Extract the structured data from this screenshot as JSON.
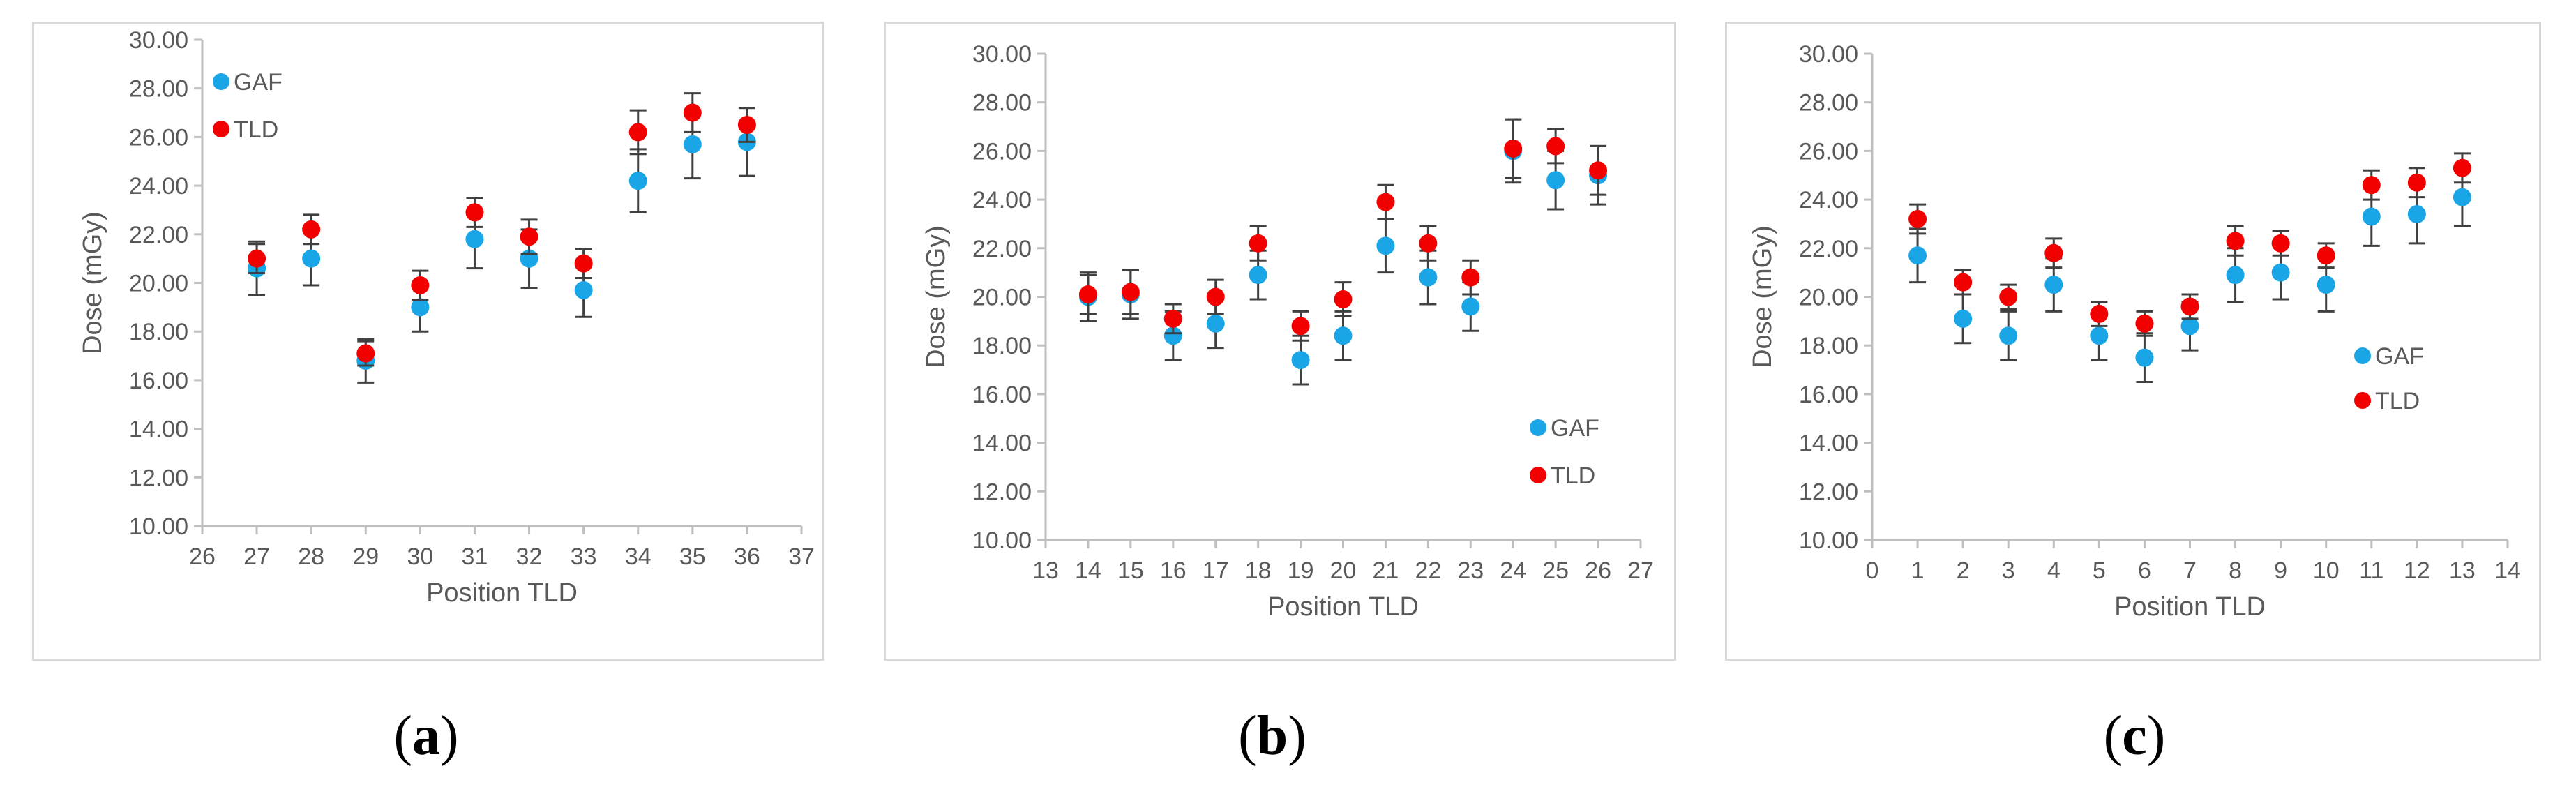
{
  "colors": {
    "gaf": "#1aa6e6",
    "tld": "#f20000",
    "axis": "#bfbfbf",
    "text": "#595959",
    "errorbar": "#404040"
  },
  "chart_data": [
    {
      "id": "a",
      "type": "scatter",
      "caption_label": "a",
      "title": "",
      "xlabel": "Position TLD",
      "ylabel": "Dose (mGy)",
      "xlim": [
        26,
        37
      ],
      "ylim": [
        10,
        30
      ],
      "x_ticks": [
        "26",
        "27",
        "28",
        "29",
        "30",
        "31",
        "32",
        "33",
        "34",
        "35",
        "36",
        "37"
      ],
      "y_ticks": [
        "10.00",
        "12.00",
        "14.00",
        "16.00",
        "18.00",
        "20.00",
        "22.00",
        "24.00",
        "26.00",
        "28.00",
        "30.00"
      ],
      "legend_position": "top-left",
      "series": [
        {
          "name": "GAF",
          "x": [
            27,
            28,
            29,
            30,
            31,
            32,
            33,
            34,
            35,
            36
          ],
          "values": [
            20.6,
            21.0,
            16.8,
            19.0,
            21.8,
            21.0,
            19.7,
            24.2,
            25.7,
            25.8
          ],
          "errors": [
            1.1,
            1.1,
            0.9,
            1.0,
            1.2,
            1.2,
            1.1,
            1.3,
            1.4,
            1.4
          ]
        },
        {
          "name": "TLD",
          "x": [
            27,
            28,
            29,
            30,
            31,
            32,
            33,
            34,
            35,
            36
          ],
          "values": [
            21.0,
            22.2,
            17.1,
            19.9,
            22.9,
            21.9,
            20.8,
            26.2,
            27.0,
            26.5
          ],
          "errors": [
            0.6,
            0.6,
            0.5,
            0.6,
            0.6,
            0.7,
            0.6,
            0.9,
            0.8,
            0.7
          ]
        }
      ]
    },
    {
      "id": "b",
      "type": "scatter",
      "caption_label": "b",
      "title": "",
      "xlabel": "Position TLD",
      "ylabel": "Dose (mGy)",
      "xlim": [
        13,
        27
      ],
      "ylim": [
        10,
        30
      ],
      "x_ticks": [
        "13",
        "14",
        "15",
        "16",
        "17",
        "18",
        "19",
        "20",
        "21",
        "22",
        "23",
        "24",
        "25",
        "26",
        "27"
      ],
      "y_ticks": [
        "10.00",
        "12.00",
        "14.00",
        "16.00",
        "18.00",
        "20.00",
        "22.00",
        "24.00",
        "26.00",
        "28.00",
        "30.00"
      ],
      "legend_position": "bottom-right",
      "series": [
        {
          "name": "GAF",
          "x": [
            14,
            15,
            16,
            17,
            18,
            19,
            20,
            21,
            22,
            23,
            24,
            25,
            26
          ],
          "values": [
            20.0,
            20.1,
            18.4,
            18.9,
            20.9,
            17.4,
            18.4,
            22.1,
            20.8,
            19.6,
            26.0,
            24.8,
            25.0
          ],
          "errors": [
            1.0,
            1.0,
            1.0,
            1.0,
            1.0,
            1.0,
            1.0,
            1.1,
            1.1,
            1.0,
            1.3,
            1.2,
            1.2
          ]
        },
        {
          "name": "TLD",
          "x": [
            14,
            15,
            16,
            17,
            18,
            19,
            20,
            21,
            22,
            23,
            24,
            25,
            26
          ],
          "values": [
            20.1,
            20.2,
            19.1,
            20.0,
            22.2,
            18.8,
            19.9,
            23.9,
            22.2,
            20.8,
            26.1,
            26.2,
            25.2
          ],
          "errors": [
            0.8,
            0.9,
            0.6,
            0.7,
            0.7,
            0.6,
            0.7,
            0.7,
            0.7,
            0.7,
            1.2,
            0.7,
            1.0
          ]
        }
      ]
    },
    {
      "id": "c",
      "type": "scatter",
      "caption_label": "c",
      "title": "",
      "xlabel": "Position TLD",
      "ylabel": "Dose (mGy)",
      "xlim": [
        0,
        14
      ],
      "ylim": [
        10,
        30
      ],
      "x_ticks": [
        "0",
        "1",
        "2",
        "3",
        "4",
        "5",
        "6",
        "7",
        "8",
        "9",
        "10",
        "11",
        "12",
        "13",
        "14"
      ],
      "y_ticks": [
        "10.00",
        "12.00",
        "14.00",
        "16.00",
        "18.00",
        "20.00",
        "22.00",
        "24.00",
        "26.00",
        "28.00",
        "30.00"
      ],
      "legend_position": "center-right",
      "series": [
        {
          "name": "GAF",
          "x": [
            1,
            2,
            3,
            4,
            5,
            6,
            7,
            8,
            9,
            10,
            11,
            12,
            13
          ],
          "values": [
            21.7,
            19.1,
            18.4,
            20.5,
            18.4,
            17.5,
            18.8,
            20.9,
            21.0,
            20.5,
            23.3,
            23.4,
            24.1
          ],
          "errors": [
            1.1,
            1.0,
            1.0,
            1.1,
            1.0,
            1.0,
            1.0,
            1.1,
            1.1,
            1.1,
            1.2,
            1.2,
            1.2
          ]
        },
        {
          "name": "TLD",
          "x": [
            1,
            2,
            3,
            4,
            5,
            6,
            7,
            8,
            9,
            10,
            11,
            12,
            13
          ],
          "values": [
            23.2,
            20.6,
            20.0,
            21.8,
            19.3,
            18.9,
            19.6,
            22.3,
            22.2,
            21.7,
            24.6,
            24.7,
            25.3
          ],
          "errors": [
            0.6,
            0.5,
            0.5,
            0.6,
            0.5,
            0.5,
            0.5,
            0.6,
            0.5,
            0.5,
            0.6,
            0.6,
            0.6
          ]
        }
      ]
    }
  ]
}
